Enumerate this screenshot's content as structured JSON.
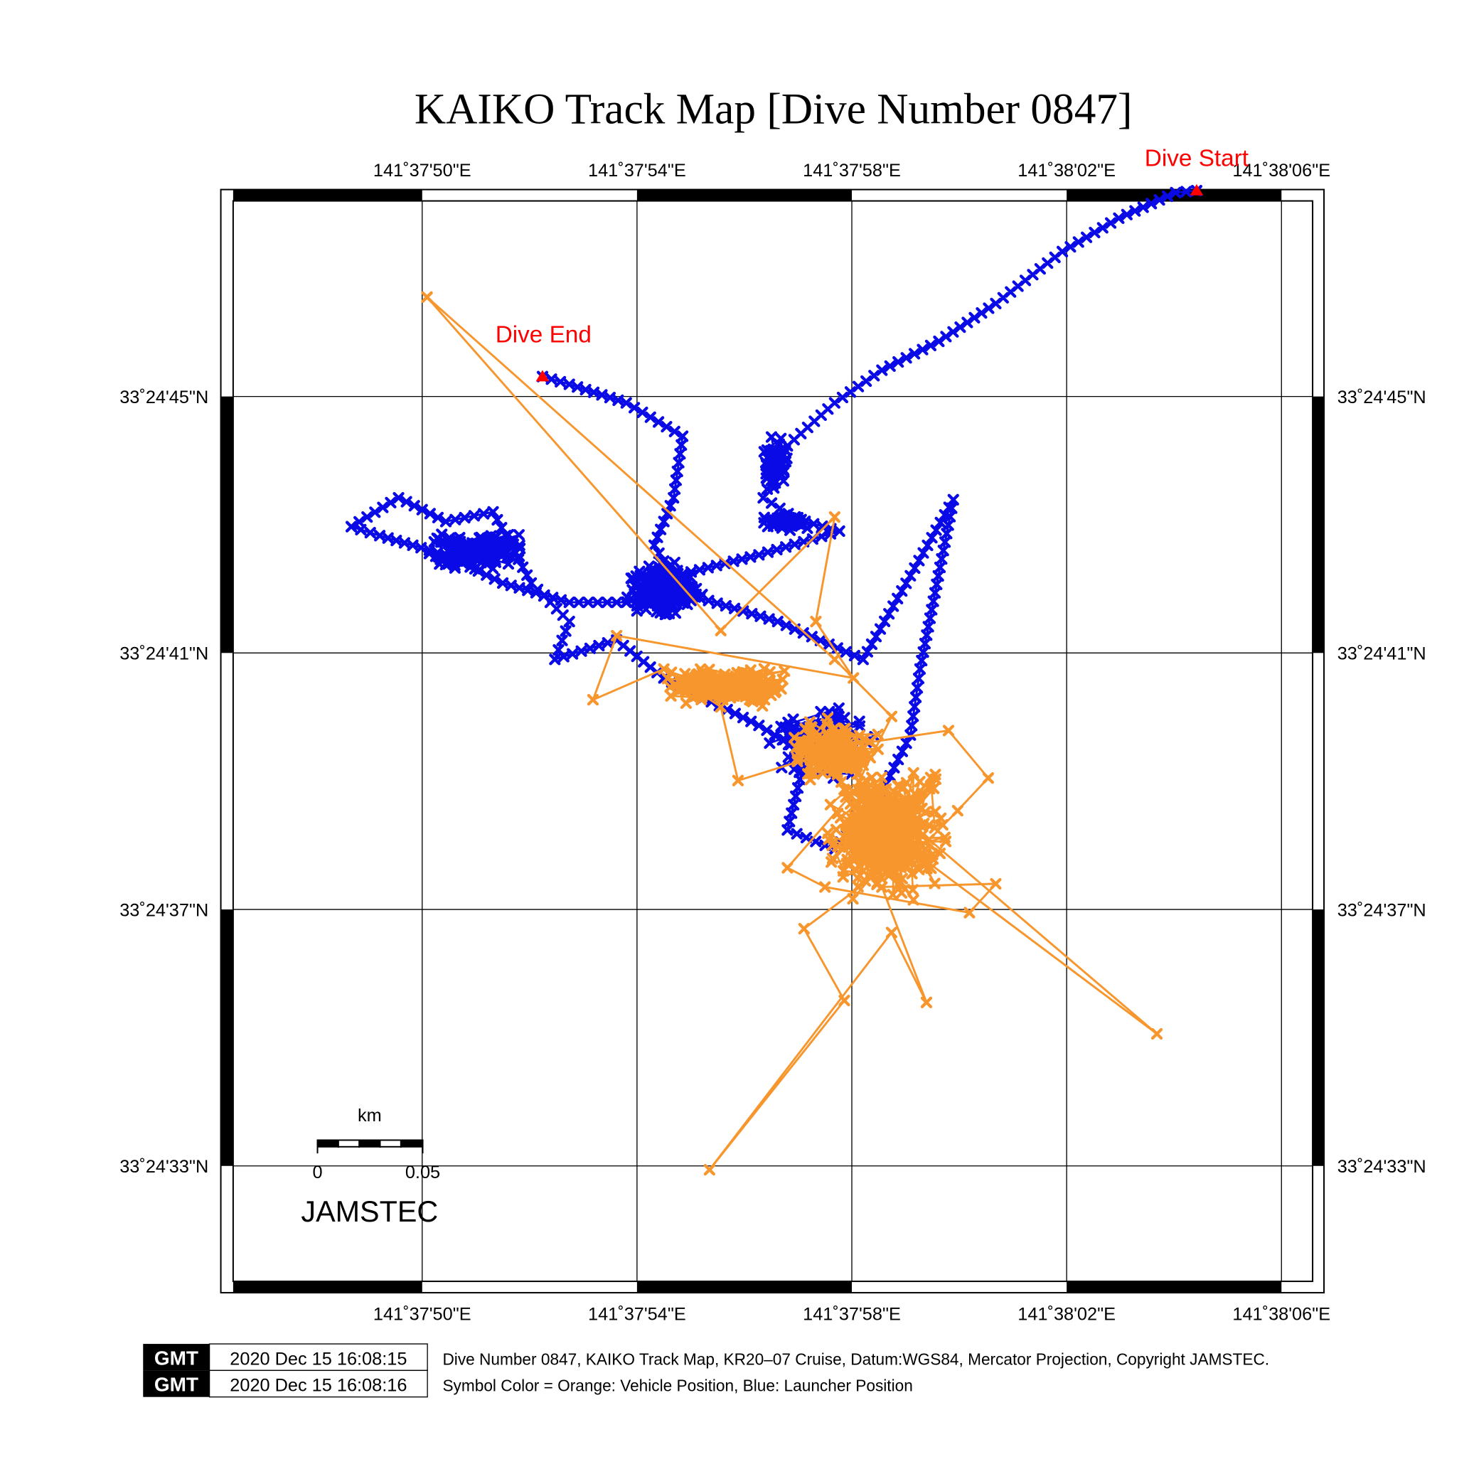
{
  "chart_data": {
    "type": "scatter",
    "title": "KAIKO Track Map [Dive Number 0847]",
    "x_axis": {
      "unit": "longitude seconds past 141°37'",
      "range": [
        46.48,
        66.58
      ],
      "ticks": [
        50,
        54,
        58,
        62,
        66
      ],
      "tick_labels": [
        "141˚37'50\"E",
        "141˚37'54\"E",
        "141˚37'58\"E",
        "141˚38'02\"E",
        "141˚38'06\"E"
      ]
    },
    "y_axis": {
      "unit": "latitude seconds past 33°24'",
      "range": [
        31.2,
        48.05
      ],
      "ticks": [
        45,
        41,
        37,
        33
      ],
      "tick_labels": [
        "33˚24'45\"N",
        "33˚24'41\"N",
        "33˚24'37\"N",
        "33˚24'33\"N"
      ]
    },
    "grid": true,
    "series": [
      {
        "name": "Launcher Position",
        "color": "#0a0ae6",
        "points": [
          [
            64.42,
            48.21
          ],
          [
            64.03,
            48.18
          ],
          [
            62.97,
            47.78
          ],
          [
            61.92,
            47.26
          ],
          [
            60.68,
            46.45
          ],
          [
            59.62,
            45.86
          ],
          [
            58.56,
            45.41
          ],
          [
            57.68,
            44.9
          ],
          [
            56.8,
            44.23
          ],
          [
            56.35,
            43.42
          ],
          [
            56.97,
            43.09
          ],
          [
            57.77,
            42.9
          ],
          [
            56.27,
            42.53
          ],
          [
            54.85,
            42.23
          ],
          [
            54.15,
            41.79
          ],
          [
            52.74,
            41.79
          ],
          [
            51.5,
            42.09
          ],
          [
            50.44,
            42.53
          ],
          [
            49.21,
            42.83
          ],
          [
            48.68,
            42.97
          ],
          [
            49.56,
            43.42
          ],
          [
            50.44,
            43.05
          ],
          [
            51.32,
            43.2
          ],
          [
            52.03,
            42.09
          ],
          [
            52.74,
            41.49
          ],
          [
            52.47,
            40.9
          ],
          [
            53.62,
            41.2
          ],
          [
            54.5,
            40.61
          ],
          [
            56.27,
            39.87
          ],
          [
            57.15,
            39.42
          ],
          [
            56.8,
            38.24
          ],
          [
            57.68,
            37.94
          ],
          [
            58.56,
            38.83
          ],
          [
            59.09,
            39.72
          ],
          [
            59.27,
            40.75
          ],
          [
            59.89,
            43.39
          ],
          [
            58.21,
            40.9
          ],
          [
            56.62,
            41.49
          ],
          [
            54.85,
            41.94
          ],
          [
            54.32,
            42.68
          ],
          [
            54.68,
            43.42
          ],
          [
            54.85,
            44.38
          ],
          [
            53.8,
            44.9
          ],
          [
            52.74,
            45.19
          ],
          [
            52.24,
            45.31
          ]
        ],
        "clusters": [
          {
            "center": [
              54.5,
              42.0
            ],
            "spread": [
              0.8,
              0.45
            ],
            "count": 220,
            "seed": 3
          },
          {
            "center": [
              51.0,
              42.6
            ],
            "spread": [
              1.1,
              0.35
            ],
            "count": 160,
            "seed": 7
          },
          {
            "center": [
              56.8,
              43.05
            ],
            "spread": [
              0.6,
              0.15
            ],
            "count": 60,
            "seed": 11
          },
          {
            "center": [
              57.4,
              39.6
            ],
            "spread": [
              1.2,
              0.7
            ],
            "count": 150,
            "seed": 13
          },
          {
            "center": [
              56.6,
              44.0
            ],
            "spread": [
              0.3,
              0.5
            ],
            "count": 60,
            "seed": 17
          }
        ]
      },
      {
        "name": "Vehicle Position",
        "color": "#f7962d",
        "points": [
          [
            50.09,
            46.55
          ],
          [
            55.56,
            41.35
          ],
          [
            57.68,
            43.12
          ],
          [
            57.33,
            41.49
          ],
          [
            58.03,
            40.61
          ],
          [
            53.62,
            41.27
          ],
          [
            53.18,
            40.27
          ],
          [
            54.5,
            40.75
          ],
          [
            55.56,
            40.16
          ],
          [
            55.88,
            39.01
          ],
          [
            58.03,
            39.57
          ],
          [
            59.8,
            39.79
          ],
          [
            60.54,
            39.05
          ],
          [
            59.97,
            38.54
          ],
          [
            59.44,
            38.09
          ],
          [
            63.68,
            35.06
          ],
          [
            59.09,
            37.94
          ],
          [
            57.11,
            36.7
          ],
          [
            57.86,
            35.58
          ],
          [
            55.35,
            32.94
          ],
          [
            58.74,
            36.64
          ],
          [
            59.39,
            35.55
          ],
          [
            58.56,
            37.35
          ],
          [
            60.68,
            37.4
          ],
          [
            60.19,
            36.95
          ],
          [
            57.5,
            37.35
          ],
          [
            56.8,
            37.65
          ],
          [
            58.03,
            38.83
          ],
          [
            58.74,
            40.01
          ],
          [
            57.68,
            40.9
          ],
          [
            50.09,
            46.55
          ]
        ],
        "clusters": [
          {
            "center": [
              58.6,
              38.2
            ],
            "spread": [
              1.3,
              1.2
            ],
            "count": 420,
            "seed": 23
          },
          {
            "center": [
              55.6,
              40.5
            ],
            "spread": [
              1.6,
              0.35
            ],
            "count": 200,
            "seed": 29
          },
          {
            "center": [
              57.6,
              39.5
            ],
            "spread": [
              1.0,
              0.6
            ],
            "count": 150,
            "seed": 31
          }
        ]
      }
    ],
    "annotations": [
      {
        "text": "Dive Start",
        "at": [
          64.42,
          48.21
        ],
        "color": "#ff0000"
      },
      {
        "text": "Dive End",
        "at": [
          52.24,
          45.31
        ],
        "color": "#ff0000"
      }
    ],
    "scale_bar": {
      "unit": "km",
      "labels": [
        "0",
        "0.05"
      ]
    },
    "logo_text": "JAMSTEC"
  },
  "footer": {
    "logo": "GMT",
    "timestamps": [
      "2020 Dec 15 16:08:15",
      "2020 Dec 15 16:08:16"
    ],
    "captions": [
      "Dive Number 0847, KAIKO Track Map, KR20–07 Cruise, Datum:WGS84, Mercator Projection, Copyright JAMSTEC.",
      "Symbol Color = Orange: Vehicle Position, Blue: Launcher Position"
    ]
  }
}
